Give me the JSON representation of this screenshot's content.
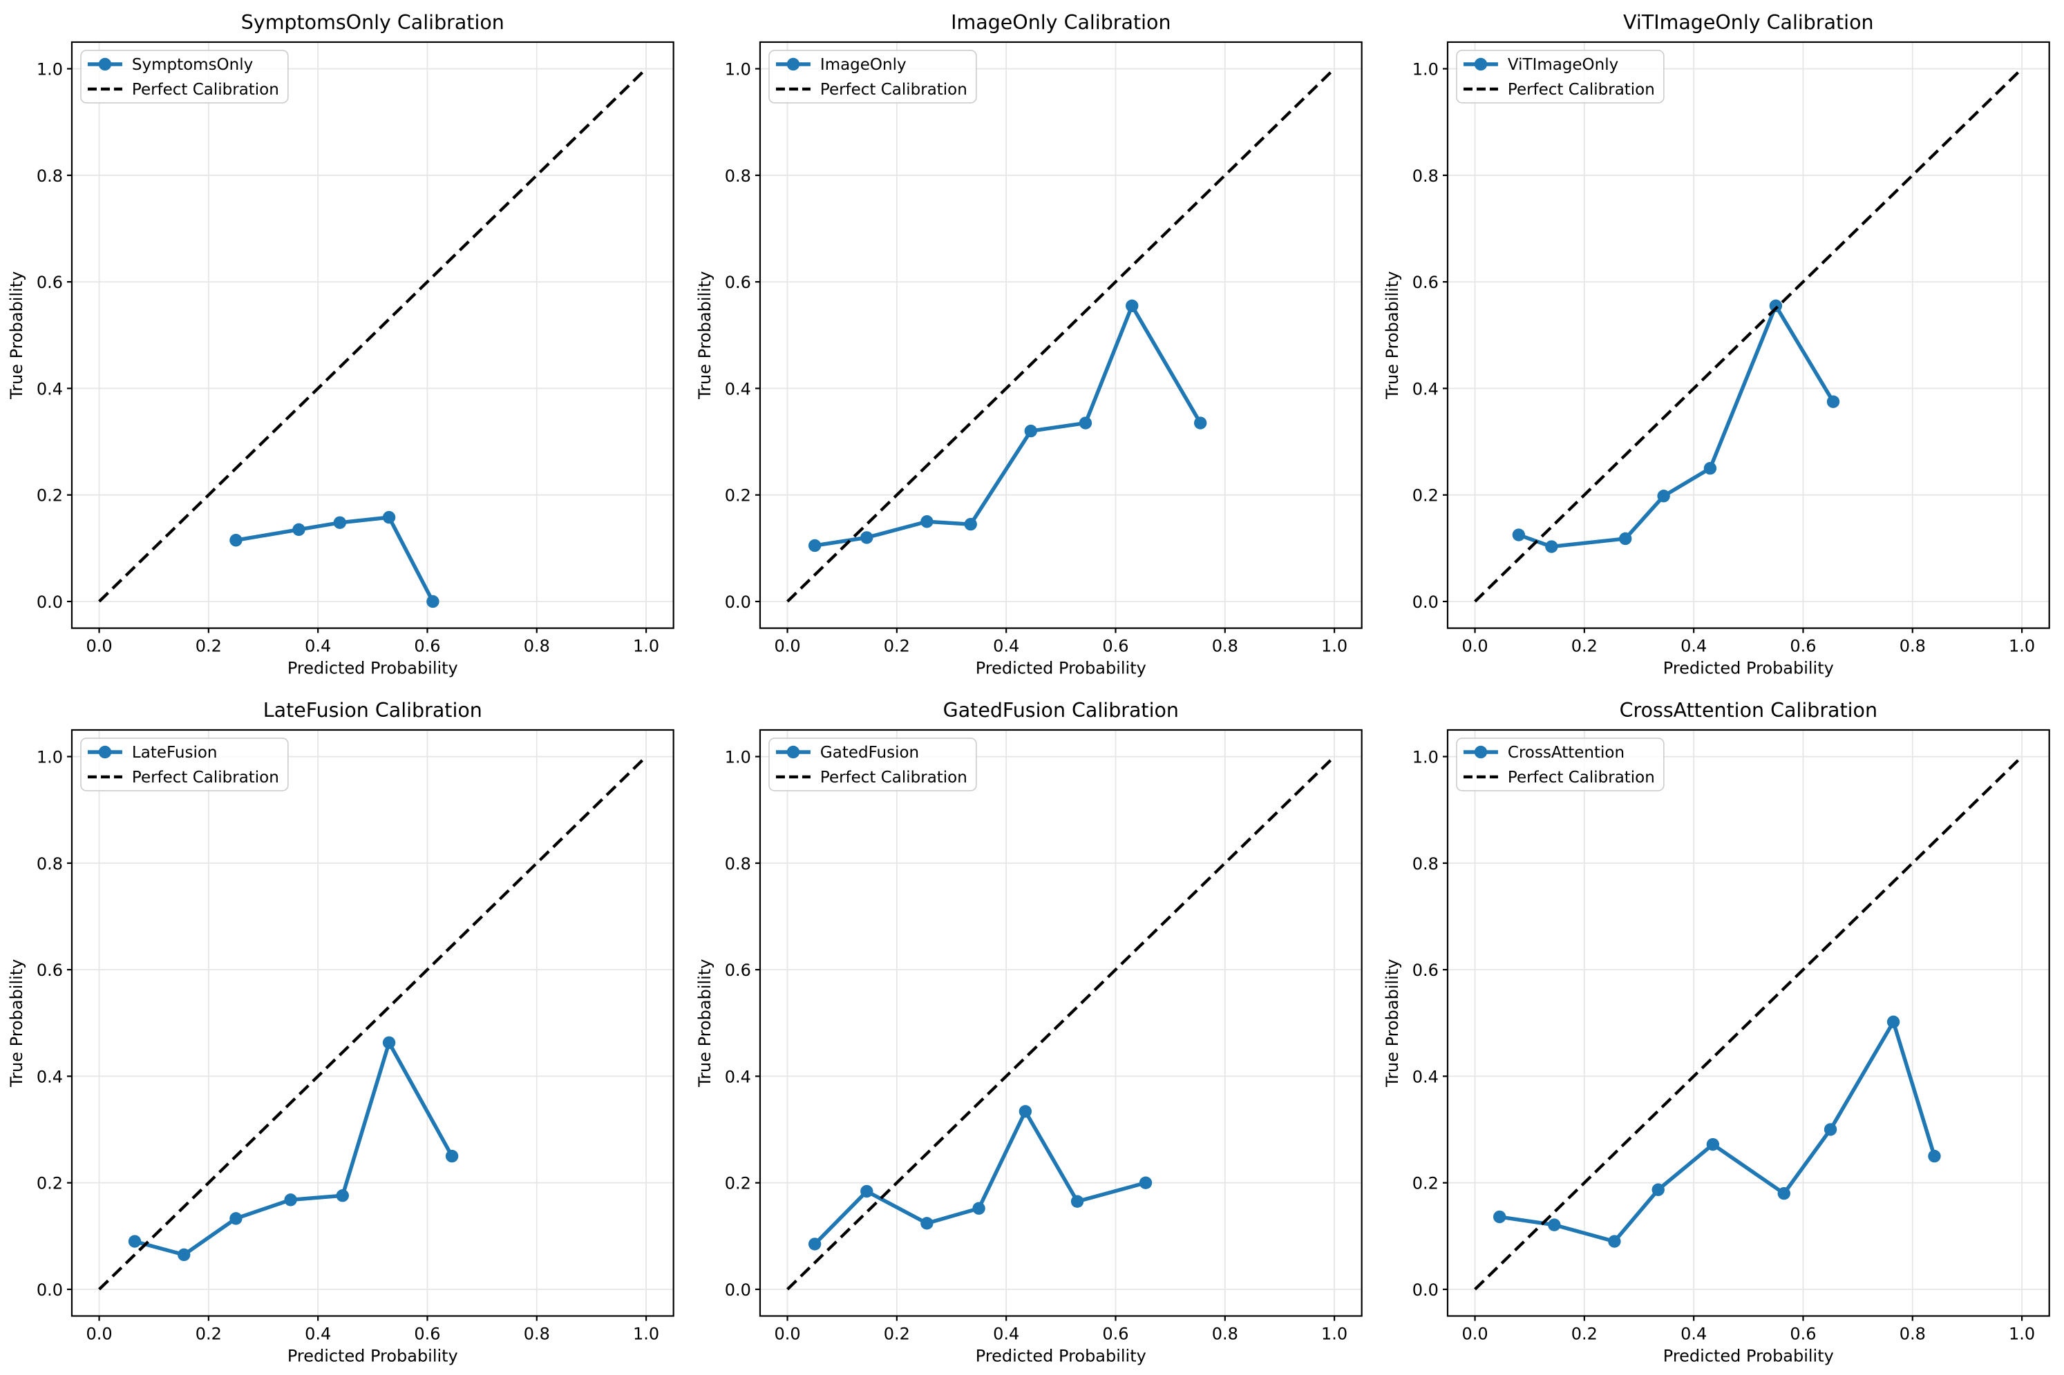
{
  "figure": {
    "background": "#ffffff",
    "accent_color": "#1f77b4",
    "reference_color": "#000000",
    "grid_color": "#e6e6e6",
    "legend_border_color": "#cccccc",
    "tick_labels": [
      "0.0",
      "0.2",
      "0.4",
      "0.6",
      "0.8",
      "1.0"
    ],
    "tick_values": [
      0.0,
      0.2,
      0.4,
      0.6,
      0.8,
      1.0
    ]
  },
  "chart_data": [
    {
      "type": "line",
      "title": "SymptomsOnly Calibration",
      "xlabel": "Predicted Probability",
      "ylabel": "True Probability",
      "xlim": [
        -0.05,
        1.05
      ],
      "ylim": [
        -0.05,
        1.05
      ],
      "grid": true,
      "legend_position": "upper left",
      "series": [
        {
          "name": "SymptomsOnly",
          "color": "#1f77b4",
          "marker": "o",
          "line": "solid",
          "x": [
            0.25,
            0.365,
            0.44,
            0.53,
            0.61
          ],
          "y": [
            0.115,
            0.135,
            0.148,
            0.158,
            0.0
          ]
        },
        {
          "name": "Perfect Calibration",
          "color": "#000000",
          "marker": "none",
          "line": "dashed",
          "x": [
            0.0,
            1.0
          ],
          "y": [
            0.0,
            1.0
          ]
        }
      ]
    },
    {
      "type": "line",
      "title": "ImageOnly Calibration",
      "xlabel": "Predicted Probability",
      "ylabel": "True Probability",
      "xlim": [
        -0.05,
        1.05
      ],
      "ylim": [
        -0.05,
        1.05
      ],
      "grid": true,
      "legend_position": "upper left",
      "series": [
        {
          "name": "ImageOnly",
          "color": "#1f77b4",
          "marker": "o",
          "line": "solid",
          "x": [
            0.05,
            0.145,
            0.255,
            0.335,
            0.445,
            0.545,
            0.63,
            0.755
          ],
          "y": [
            0.105,
            0.12,
            0.15,
            0.145,
            0.32,
            0.335,
            0.555,
            0.335
          ]
        },
        {
          "name": "Perfect Calibration",
          "color": "#000000",
          "marker": "none",
          "line": "dashed",
          "x": [
            0.0,
            1.0
          ],
          "y": [
            0.0,
            1.0
          ]
        }
      ]
    },
    {
      "type": "line",
      "title": "ViTImageOnly Calibration",
      "xlabel": "Predicted Probability",
      "ylabel": "True Probability",
      "xlim": [
        -0.05,
        1.05
      ],
      "ylim": [
        -0.05,
        1.05
      ],
      "grid": true,
      "legend_position": "upper left",
      "series": [
        {
          "name": "ViTImageOnly",
          "color": "#1f77b4",
          "marker": "o",
          "line": "solid",
          "x": [
            0.08,
            0.14,
            0.275,
            0.345,
            0.43,
            0.55,
            0.655
          ],
          "y": [
            0.125,
            0.103,
            0.118,
            0.198,
            0.25,
            0.555,
            0.375
          ]
        },
        {
          "name": "Perfect Calibration",
          "color": "#000000",
          "marker": "none",
          "line": "dashed",
          "x": [
            0.0,
            1.0
          ],
          "y": [
            0.0,
            1.0
          ]
        }
      ]
    },
    {
      "type": "line",
      "title": "LateFusion Calibration",
      "xlabel": "Predicted Probability",
      "ylabel": "True Probability",
      "xlim": [
        -0.05,
        1.05
      ],
      "ylim": [
        -0.05,
        1.05
      ],
      "grid": true,
      "legend_position": "upper left",
      "series": [
        {
          "name": "LateFusion",
          "color": "#1f77b4",
          "marker": "o",
          "line": "solid",
          "x": [
            0.065,
            0.155,
            0.25,
            0.35,
            0.445,
            0.53,
            0.645
          ],
          "y": [
            0.09,
            0.065,
            0.133,
            0.168,
            0.176,
            0.463,
            0.25
          ]
        },
        {
          "name": "Perfect Calibration",
          "color": "#000000",
          "marker": "none",
          "line": "dashed",
          "x": [
            0.0,
            1.0
          ],
          "y": [
            0.0,
            1.0
          ]
        }
      ]
    },
    {
      "type": "line",
      "title": "GatedFusion Calibration",
      "xlabel": "Predicted Probability",
      "ylabel": "True Probability",
      "xlim": [
        -0.05,
        1.05
      ],
      "ylim": [
        -0.05,
        1.05
      ],
      "grid": true,
      "legend_position": "upper left",
      "series": [
        {
          "name": "GatedFusion",
          "color": "#1f77b4",
          "marker": "o",
          "line": "solid",
          "x": [
            0.05,
            0.145,
            0.255,
            0.35,
            0.435,
            0.53,
            0.655
          ],
          "y": [
            0.085,
            0.184,
            0.124,
            0.152,
            0.334,
            0.165,
            0.2
          ]
        },
        {
          "name": "Perfect Calibration",
          "color": "#000000",
          "marker": "none",
          "line": "dashed",
          "x": [
            0.0,
            1.0
          ],
          "y": [
            0.0,
            1.0
          ]
        }
      ]
    },
    {
      "type": "line",
      "title": "CrossAttention Calibration",
      "xlabel": "Predicted Probability",
      "ylabel": "True Probability",
      "xlim": [
        -0.05,
        1.05
      ],
      "ylim": [
        -0.05,
        1.05
      ],
      "grid": true,
      "legend_position": "upper left",
      "series": [
        {
          "name": "CrossAttention",
          "color": "#1f77b4",
          "marker": "o",
          "line": "solid",
          "x": [
            0.045,
            0.145,
            0.255,
            0.335,
            0.435,
            0.565,
            0.65,
            0.765,
            0.84
          ],
          "y": [
            0.136,
            0.121,
            0.09,
            0.187,
            0.272,
            0.18,
            0.3,
            0.502,
            0.25
          ]
        },
        {
          "name": "Perfect Calibration",
          "color": "#000000",
          "marker": "none",
          "line": "dashed",
          "x": [
            0.0,
            1.0
          ],
          "y": [
            0.0,
            1.0
          ]
        }
      ]
    }
  ]
}
